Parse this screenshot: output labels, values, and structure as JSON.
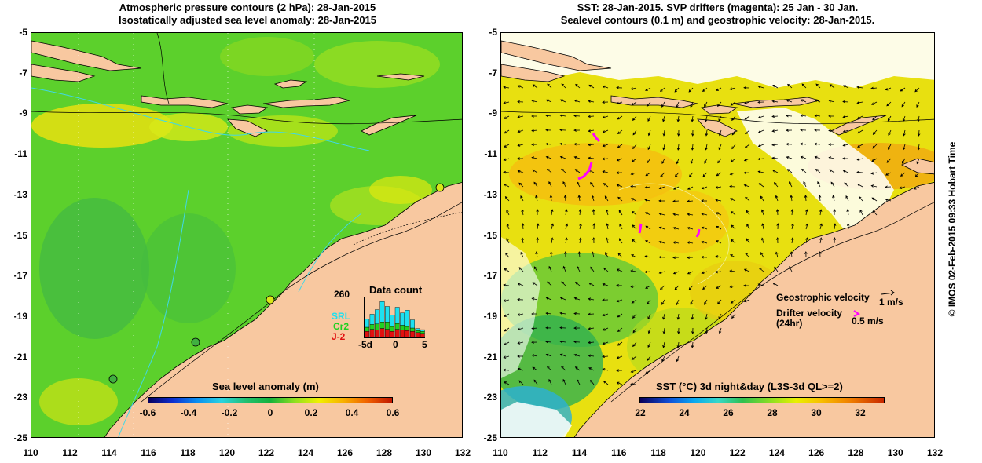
{
  "left_panel": {
    "title_line1": "Atmospheric pressure contours (2 hPa): 28-Jan-2015",
    "title_line2": "Isostatically adjusted sea level anomaly: 28-Jan-2015",
    "colorbar": {
      "title": "Sea level anomaly (m)",
      "ticks": [
        "-0.6",
        "-0.4",
        "-0.2",
        "0",
        "0.2",
        "0.4",
        "0.6"
      ]
    },
    "data_count": {
      "title": "Data count",
      "max_label": "260",
      "series": [
        {
          "name": "SRL",
          "color": "#1ee0f0"
        },
        {
          "name": "Cr2",
          "color": "#20d020"
        },
        {
          "name": "J-2",
          "color": "#e01010"
        }
      ],
      "x_ticks": [
        "-5d",
        "0",
        "5"
      ],
      "bars": {
        "j2": [
          0.15,
          0.2,
          0.18,
          0.22,
          0.2,
          0.15,
          0.2,
          0.18,
          0.17,
          0.15,
          0.12,
          0.1
        ],
        "cr2": [
          0.1,
          0.12,
          0.15,
          0.16,
          0.18,
          0.12,
          0.14,
          0.12,
          0.1,
          0.08,
          0.05,
          0.05
        ],
        "srl": [
          0.2,
          0.25,
          0.35,
          0.5,
          0.38,
          0.28,
          0.4,
          0.3,
          0.4,
          0.2,
          0.05,
          0.04
        ]
      }
    }
  },
  "right_panel": {
    "title_line1": "SST: 28-Jan-2015. SVP drifters (magenta): 25 Jan - 30 Jan.",
    "title_line2": "Sealevel contours (0.1 m) and geostrophic velocity: 28-Jan-2015.",
    "colorbar": {
      "title": "SST (°C) 3d night&day (L3S-3d QL>=2)",
      "ticks": [
        "22",
        "24",
        "26",
        "28",
        "30",
        "32"
      ]
    },
    "legend": {
      "geostrophic": "Geostrophic velocity",
      "geostrophic_scale": "1 m/s",
      "drifter_line1": "Drifter velocity",
      "drifter_line2": "(24hr)",
      "drifter_scale": "0.5 m/s"
    }
  },
  "axes": {
    "y_ticks": [
      "-5",
      "-7",
      "-9",
      "-11",
      "-13",
      "-15",
      "-17",
      "-19",
      "-21",
      "-23",
      "-25"
    ],
    "x_ticks": [
      "110",
      "112",
      "114",
      "116",
      "118",
      "120",
      "122",
      "124",
      "126",
      "128",
      "130",
      "132"
    ],
    "lat_range": [
      -25,
      -5
    ],
    "lon_range": [
      110,
      132
    ]
  },
  "credit": "© IMOS 02-Feb-2015 09:33 Hobart Time",
  "colors": {
    "land": "#f8c8a0",
    "ocean_left": "#5ad22a",
    "ocean_right": "#f0e010",
    "drifter": "#ff00ff"
  }
}
